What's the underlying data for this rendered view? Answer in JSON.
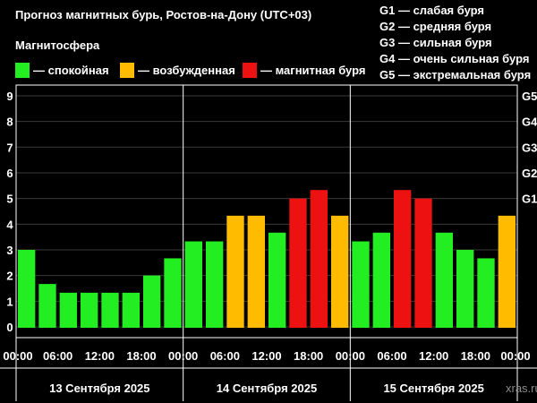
{
  "header": {
    "title": "Прогноз магнитных бурь, Ростов-на-Дону (UTC+03)",
    "subtitle": "Магнитосфера"
  },
  "legend": [
    {
      "label": "— спокойная",
      "color": "#22ee22"
    },
    {
      "label": "— возбужденная",
      "color": "#ffbb00"
    },
    {
      "label": "— магнитная буря",
      "color": "#ee1111"
    }
  ],
  "g_legend": [
    "G1 — слабая буря",
    "G2 — средняя буря",
    "G3 — сильная буря",
    "G4 — очень сильная буря",
    "G5 — экстремальная буря"
  ],
  "watermark": "xras.ru",
  "chart_data": {
    "type": "bar",
    "title": "Прогноз магнитных бурь, Ростов-на-Дону (UTC+03)",
    "ylim": [
      0,
      9
    ],
    "yticks": [
      "0",
      "1",
      "2",
      "3",
      "4",
      "5",
      "6",
      "7",
      "8",
      "9"
    ],
    "right_ticks": [
      {
        "label": "G1",
        "value": 5
      },
      {
        "label": "G2",
        "value": 6
      },
      {
        "label": "G3",
        "value": 7
      },
      {
        "label": "G4",
        "value": 8
      },
      {
        "label": "G5",
        "value": 9
      }
    ],
    "xtick_labels": [
      "00:00",
      "06:00",
      "12:00",
      "18:00",
      "00:00",
      "06:00",
      "12:00",
      "18:00",
      "00:00",
      "06:00",
      "12:00",
      "18:00",
      "00:00"
    ],
    "days": [
      "13 Сентября 2025",
      "14 Сентября 2025",
      "15 Сентября 2025"
    ],
    "bar_hours": [
      "00:00",
      "03:00",
      "06:00",
      "09:00",
      "12:00",
      "15:00",
      "18:00",
      "21:00"
    ],
    "values": [
      [
        3.0,
        1.67,
        1.33,
        1.33,
        1.33,
        1.33,
        2.0,
        2.67
      ],
      [
        3.33,
        3.33,
        4.33,
        4.33,
        3.67,
        5.0,
        5.33,
        4.33
      ],
      [
        3.33,
        3.67,
        5.33,
        5.0,
        3.67,
        3.0,
        2.67,
        4.33
      ]
    ],
    "colors": {
      "quiet": "#22ee22",
      "excited": "#ffbb00",
      "storm": "#ee1111"
    },
    "grid": true
  }
}
